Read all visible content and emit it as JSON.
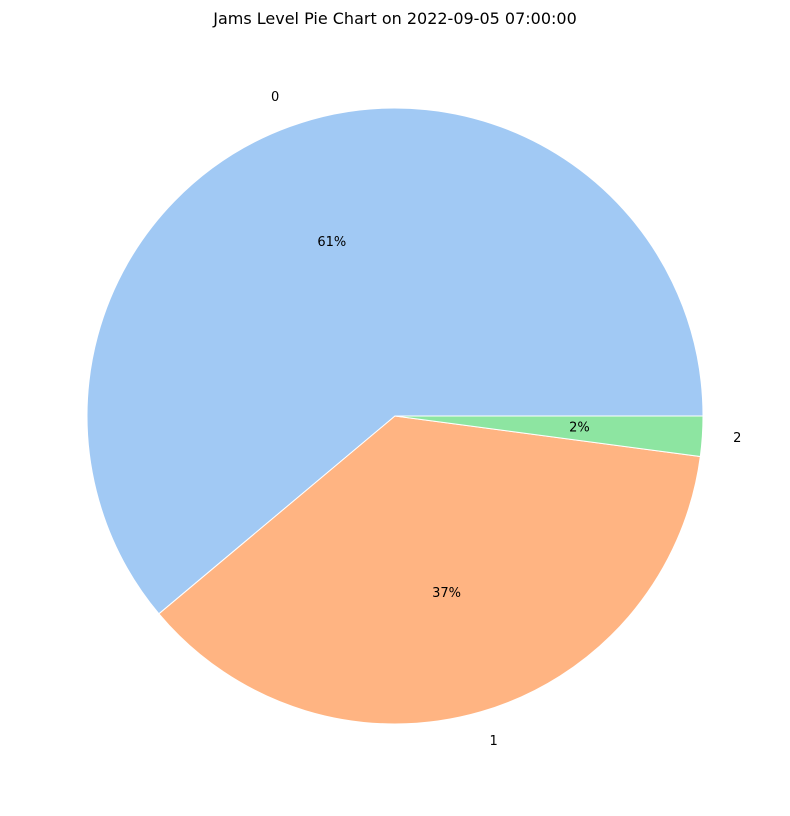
{
  "chart_data": {
    "type": "pie",
    "title": "Jams Level Pie Chart on 2022-09-05 07:00:00",
    "categories": [
      "0",
      "1",
      "2"
    ],
    "values": [
      61.1,
      36.8,
      2.1
    ],
    "percent_labels": [
      "61%",
      "37%",
      "2%"
    ],
    "colors": [
      "#a1c9f4",
      "#ffb482",
      "#8de5a1"
    ],
    "start_angle_deg": 0,
    "direction": "counterclockwise",
    "legend": "none"
  }
}
